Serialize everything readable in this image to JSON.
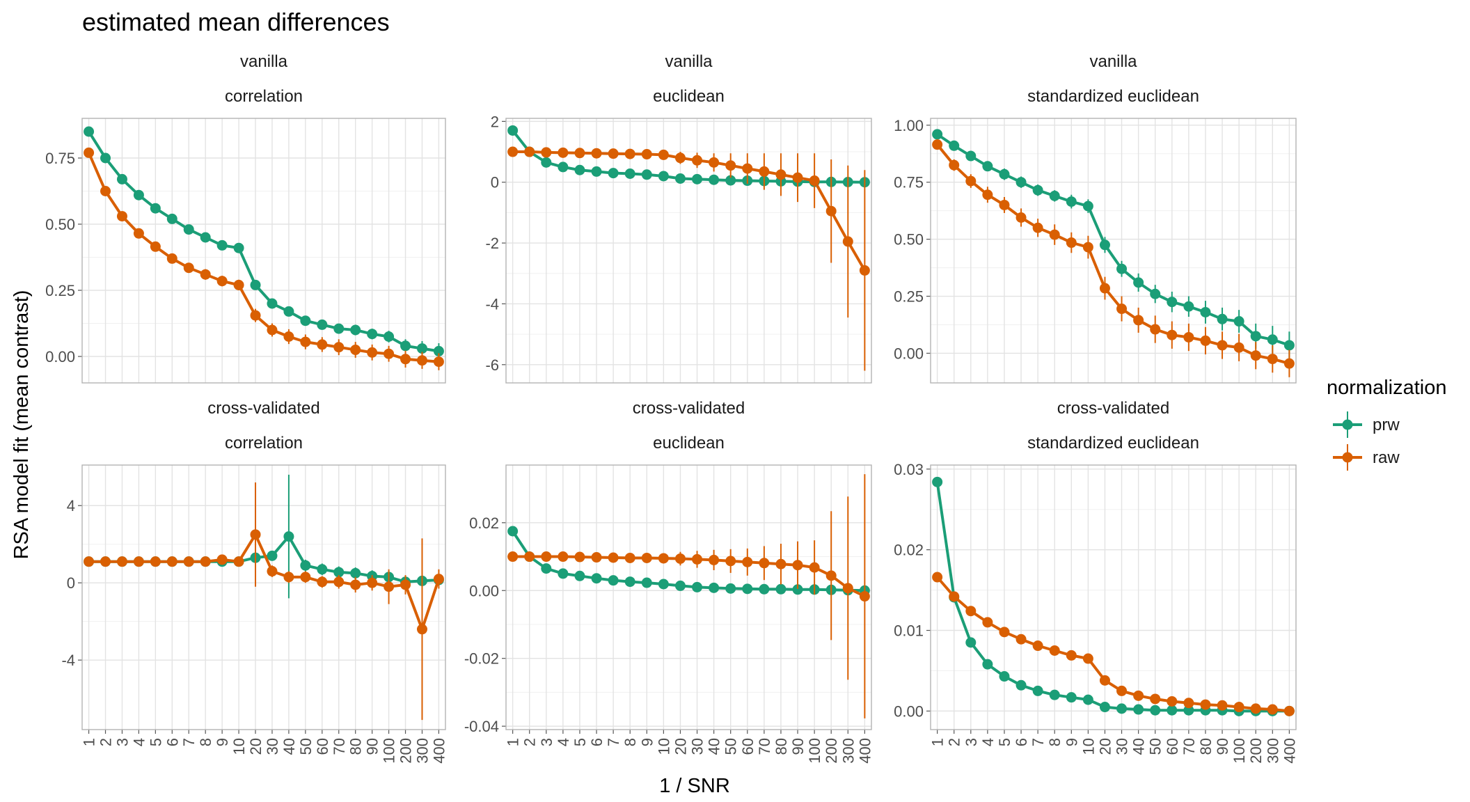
{
  "title": "estimated mean differences",
  "xlabel": "1 / SNR",
  "ylabel": "RSA model fit (mean contrast)",
  "legend": {
    "title": "normalization",
    "items": [
      {
        "label": "prw",
        "color": "#1b9e77"
      },
      {
        "label": "raw",
        "color": "#d95f02"
      }
    ]
  },
  "chart_data": {
    "type": "line",
    "x": [
      "1",
      "2",
      "3",
      "4",
      "5",
      "6",
      "7",
      "8",
      "9",
      "10",
      "20",
      "30",
      "40",
      "50",
      "60",
      "70",
      "80",
      "90",
      "100",
      "200",
      "300",
      "400"
    ],
    "panels": [
      {
        "row_label": "vanilla",
        "col_label": "correlation",
        "ylim": [
          -0.1,
          0.9
        ],
        "yticks": [
          0.0,
          0.25,
          0.5,
          0.75
        ],
        "ytick_labels": [
          "0.00",
          "0.25",
          "0.50",
          "0.75"
        ],
        "series": [
          {
            "name": "prw",
            "values": [
              0.85,
              0.75,
              0.67,
              0.61,
              0.56,
              0.52,
              0.48,
              0.45,
              0.42,
              0.41,
              0.27,
              0.2,
              0.17,
              0.135,
              0.12,
              0.105,
              0.1,
              0.085,
              0.075,
              0.04,
              0.03,
              0.02
            ],
            "err": [
              0.01,
              0.01,
              0.01,
              0.01,
              0.01,
              0.01,
              0.01,
              0.01,
              0.01,
              0.01,
              0.01,
              0.012,
              0.015,
              0.015,
              0.018,
              0.018,
              0.02,
              0.02,
              0.022,
              0.025,
              0.028,
              0.03
            ]
          },
          {
            "name": "raw",
            "values": [
              0.77,
              0.625,
              0.53,
              0.465,
              0.415,
              0.37,
              0.335,
              0.31,
              0.285,
              0.27,
              0.155,
              0.1,
              0.075,
              0.055,
              0.045,
              0.035,
              0.025,
              0.015,
              0.01,
              -0.01,
              -0.015,
              -0.02
            ],
            "err": [
              0.01,
              0.01,
              0.012,
              0.012,
              0.015,
              0.015,
              0.018,
              0.02,
              0.02,
              0.02,
              0.025,
              0.025,
              0.028,
              0.028,
              0.028,
              0.03,
              0.03,
              0.03,
              0.03,
              0.032,
              0.032,
              0.032
            ]
          }
        ]
      },
      {
        "row_label": "vanilla",
        "col_label": "euclidean",
        "ylim": [
          -6.6,
          2.1
        ],
        "yticks": [
          -6,
          -4,
          -2,
          0,
          2
        ],
        "ytick_labels": [
          "-6",
          "-4",
          "-2",
          "0",
          "2"
        ],
        "series": [
          {
            "name": "prw",
            "values": [
              1.7,
              1.0,
              0.65,
              0.5,
              0.4,
              0.35,
              0.3,
              0.28,
              0.25,
              0.2,
              0.12,
              0.1,
              0.08,
              0.06,
              0.05,
              0.04,
              0.03,
              0.02,
              0.01,
              0.01,
              0.005,
              0.0
            ],
            "err": [
              0.05,
              0.05,
              0.05,
              0.05,
              0.05,
              0.05,
              0.05,
              0.05,
              0.05,
              0.05,
              0.05,
              0.05,
              0.06,
              0.06,
              0.06,
              0.07,
              0.08,
              0.08,
              0.08,
              0.1,
              0.1,
              0.1
            ]
          },
          {
            "name": "raw",
            "values": [
              1.0,
              1.0,
              0.98,
              0.97,
              0.96,
              0.95,
              0.94,
              0.93,
              0.92,
              0.9,
              0.8,
              0.72,
              0.65,
              0.55,
              0.45,
              0.35,
              0.25,
              0.15,
              0.05,
              -0.95,
              -1.95,
              -2.9
            ],
            "err": [
              0.05,
              0.05,
              0.05,
              0.06,
              0.06,
              0.07,
              0.08,
              0.1,
              0.12,
              0.15,
              0.2,
              0.25,
              0.3,
              0.4,
              0.5,
              0.6,
              0.7,
              0.8,
              0.9,
              1.7,
              2.5,
              3.3
            ]
          }
        ]
      },
      {
        "row_label": "vanilla",
        "col_label": "standardized euclidean",
        "ylim": [
          -0.13,
          1.03
        ],
        "yticks": [
          0.0,
          0.25,
          0.5,
          0.75,
          1.0
        ],
        "ytick_labels": [
          "0.00",
          "0.25",
          "0.50",
          "0.75",
          "1.00"
        ],
        "series": [
          {
            "name": "prw",
            "values": [
              0.96,
              0.91,
              0.865,
              0.82,
              0.785,
              0.75,
              0.715,
              0.69,
              0.665,
              0.645,
              0.475,
              0.37,
              0.31,
              0.26,
              0.225,
              0.205,
              0.18,
              0.15,
              0.14,
              0.075,
              0.06,
              0.035
            ],
            "err": [
              0.02,
              0.02,
              0.02,
              0.02,
              0.025,
              0.025,
              0.025,
              0.025,
              0.03,
              0.03,
              0.035,
              0.035,
              0.04,
              0.04,
              0.045,
              0.045,
              0.05,
              0.05,
              0.05,
              0.055,
              0.06,
              0.06
            ]
          },
          {
            "name": "raw",
            "values": [
              0.915,
              0.825,
              0.755,
              0.695,
              0.65,
              0.595,
              0.55,
              0.52,
              0.485,
              0.465,
              0.285,
              0.195,
              0.145,
              0.105,
              0.08,
              0.07,
              0.055,
              0.035,
              0.025,
              -0.01,
              -0.025,
              -0.045
            ],
            "err": [
              0.02,
              0.025,
              0.03,
              0.035,
              0.035,
              0.04,
              0.04,
              0.045,
              0.045,
              0.05,
              0.05,
              0.055,
              0.055,
              0.06,
              0.06,
              0.06,
              0.06,
              0.06,
              0.06,
              0.06,
              0.06,
              0.06
            ]
          }
        ]
      },
      {
        "row_label": "cross-validated",
        "col_label": "correlation",
        "ylim": [
          -7.6,
          6.1
        ],
        "yticks": [
          -4,
          0,
          4
        ],
        "ytick_labels": [
          "-4",
          "0",
          "4"
        ],
        "series": [
          {
            "name": "prw",
            "values": [
              1.1,
              1.1,
              1.1,
              1.1,
              1.1,
              1.1,
              1.1,
              1.1,
              1.1,
              1.1,
              1.3,
              1.4,
              2.4,
              0.9,
              0.7,
              0.55,
              0.5,
              0.35,
              0.3,
              0.05,
              0.1,
              0.15
            ],
            "err": [
              0.05,
              0.05,
              0.05,
              0.05,
              0.05,
              0.05,
              0.05,
              0.05,
              0.05,
              0.05,
              0.1,
              0.2,
              3.2,
              0.3,
              0.3,
              0.3,
              0.3,
              0.3,
              0.3,
              0.3,
              0.3,
              0.3
            ]
          },
          {
            "name": "raw",
            "values": [
              1.1,
              1.1,
              1.1,
              1.1,
              1.1,
              1.1,
              1.1,
              1.1,
              1.2,
              1.1,
              2.5,
              0.6,
              0.3,
              0.3,
              0.05,
              0.05,
              -0.1,
              0.0,
              -0.2,
              -0.1,
              -2.4,
              0.2
            ],
            "err": [
              0.05,
              0.05,
              0.05,
              0.05,
              0.05,
              0.05,
              0.05,
              0.1,
              0.15,
              0.2,
              2.7,
              0.3,
              0.3,
              0.3,
              0.3,
              0.35,
              0.4,
              0.4,
              0.9,
              0.5,
              4.7,
              0.5
            ]
          }
        ]
      },
      {
        "row_label": "cross-validated",
        "col_label": "euclidean",
        "ylim": [
          -0.041,
          0.037
        ],
        "yticks": [
          -0.04,
          -0.02,
          0.0,
          0.02
        ],
        "ytick_labels": [
          "-0.04",
          "-0.02",
          "0.00",
          "0.02"
        ],
        "series": [
          {
            "name": "prw",
            "values": [
              0.0175,
              0.01,
              0.0065,
              0.005,
              0.0043,
              0.0036,
              0.003,
              0.0026,
              0.0023,
              0.0019,
              0.0014,
              0.001,
              0.0008,
              0.0006,
              0.0005,
              0.0004,
              0.0004,
              0.0003,
              0.0003,
              0.0002,
              0.0001,
              0.0
            ],
            "err": [
              0.0004,
              0.0004,
              0.0004,
              0.0003,
              0.0003,
              0.0003,
              0.0003,
              0.0003,
              0.0003,
              0.0003,
              0.0003,
              0.0003,
              0.0003,
              0.0003,
              0.0003,
              0.0003,
              0.0003,
              0.0003,
              0.0003,
              0.0003,
              0.0003,
              0.0003
            ]
          },
          {
            "name": "raw",
            "values": [
              0.01,
              0.01,
              0.01,
              0.01,
              0.0099,
              0.0098,
              0.0097,
              0.0096,
              0.0096,
              0.0095,
              0.0094,
              0.0092,
              0.009,
              0.0087,
              0.0084,
              0.0081,
              0.0078,
              0.0075,
              0.0068,
              0.0044,
              0.0007,
              -0.0017
            ],
            "err": [
              0.0003,
              0.0003,
              0.0003,
              0.0004,
              0.0005,
              0.0006,
              0.0008,
              0.001,
              0.0012,
              0.0015,
              0.002,
              0.0025,
              0.003,
              0.0035,
              0.004,
              0.005,
              0.006,
              0.007,
              0.008,
              0.019,
              0.027,
              0.036
            ]
          }
        ]
      },
      {
        "row_label": "cross-validated",
        "col_label": "standardized euclidean",
        "ylim": [
          -0.0023,
          0.0305
        ],
        "yticks": [
          0.0,
          0.01,
          0.02,
          0.03
        ],
        "ytick_labels": [
          "0.00",
          "0.01",
          "0.02",
          "0.03"
        ],
        "series": [
          {
            "name": "prw",
            "values": [
              0.0284,
              0.0141,
              0.0085,
              0.0058,
              0.0043,
              0.0032,
              0.0025,
              0.002,
              0.0017,
              0.0014,
              0.0005,
              0.0003,
              0.0002,
              0.0001,
              0.0001,
              0.0001,
              0.0001,
              0.0001,
              0.0,
              0.0,
              0.0,
              0.0
            ],
            "err": [
              0.0003,
              0.0002,
              0.0002,
              0.0002,
              0.0002,
              0.0002,
              0.0002,
              0.0002,
              0.0002,
              0.0002,
              0.0002,
              0.0002,
              0.0002,
              0.0002,
              0.0002,
              0.0002,
              0.0002,
              0.0002,
              0.0002,
              0.0002,
              0.0002,
              0.0002
            ]
          },
          {
            "name": "raw",
            "values": [
              0.0166,
              0.0142,
              0.0124,
              0.011,
              0.0098,
              0.0089,
              0.0081,
              0.0075,
              0.0069,
              0.0065,
              0.0038,
              0.0025,
              0.0019,
              0.0015,
              0.0012,
              0.001,
              0.0008,
              0.0007,
              0.0005,
              0.0003,
              0.0002,
              0.0
            ],
            "err": [
              0.0003,
              0.0003,
              0.0003,
              0.0003,
              0.0003,
              0.0003,
              0.0003,
              0.0003,
              0.0003,
              0.0003,
              0.0003,
              0.0003,
              0.0003,
              0.0003,
              0.0003,
              0.0003,
              0.0003,
              0.0003,
              0.0003,
              0.0003,
              0.0003,
              0.0003
            ]
          }
        ]
      }
    ]
  }
}
